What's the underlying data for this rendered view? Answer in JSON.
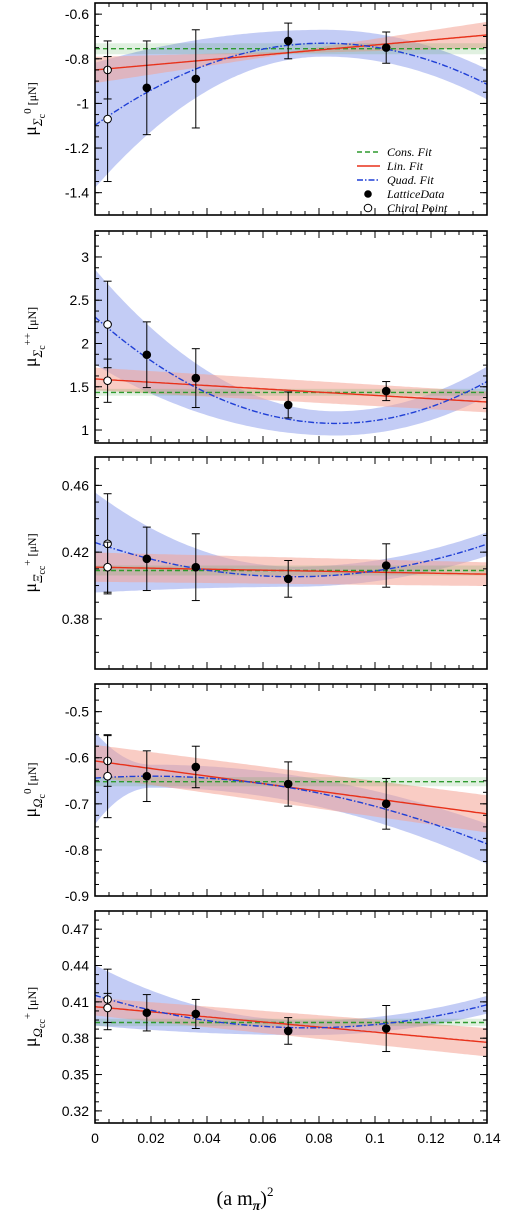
{
  "chart_data": [
    {
      "panel": "sigma_c0",
      "type": "line",
      "ylabel": {
        "main": "μ",
        "sub": "Σ",
        "sub2": "c",
        "sup": "0",
        "unit": "[μN]"
      },
      "ylim": [
        -1.5,
        -0.55
      ],
      "yticks": [
        -0.6,
        -0.8,
        -1,
        -1.2,
        -1.4
      ],
      "ytick_labels": [
        "-0.6",
        "-0.8",
        "-1",
        "-1.2",
        "-1.4"
      ],
      "lattice": [
        {
          "x": 0.0185,
          "y": -0.93,
          "err": 0.21
        },
        {
          "x": 0.036,
          "y": -0.89,
          "err": 0.22
        },
        {
          "x": 0.069,
          "y": -0.72,
          "err": 0.08
        },
        {
          "x": 0.104,
          "y": -0.75,
          "err": 0.07
        }
      ],
      "chiral": [
        {
          "x": 0.0045,
          "y": -0.85,
          "err": 0.13
        },
        {
          "x": 0.0045,
          "y": -1.07,
          "err": 0.28
        }
      ],
      "cons": {
        "value": -0.755,
        "band": 0.025
      },
      "lin": {
        "a": -0.85,
        "b": 1.12,
        "band_a": 0.1,
        "band_b": -0.1
      },
      "quad": {
        "a": -1.098,
        "b": 8.972,
        "c": -54.71,
        "band_a": 0.28,
        "band_vertex": 0.06,
        "band_c": 360,
        "vertex": 0.082
      }
    },
    {
      "panel": "sigma_cpp",
      "type": "line",
      "ylabel": {
        "main": "μ",
        "sub": "Σ",
        "sub2": "c",
        "sup": "++",
        "unit": "[μN]"
      },
      "ylim": [
        0.85,
        3.3
      ],
      "yticks": [
        1,
        1.5,
        2,
        2.5,
        3
      ],
      "ytick_labels": [
        "1",
        "1.5",
        "2",
        "2.5",
        "3"
      ],
      "lattice": [
        {
          "x": 0.0185,
          "y": 1.87,
          "err": 0.38
        },
        {
          "x": 0.036,
          "y": 1.6,
          "err": 0.34
        },
        {
          "x": 0.069,
          "y": 1.29,
          "err": 0.15
        },
        {
          "x": 0.104,
          "y": 1.45,
          "err": 0.11
        }
      ],
      "chiral": [
        {
          "x": 0.0045,
          "y": 2.22,
          "err": 0.5
        },
        {
          "x": 0.0045,
          "y": 1.57,
          "err": 0.25
        }
      ],
      "cons": {
        "value": 1.435,
        "band": 0.04
      },
      "lin": {
        "a": 1.59,
        "b": -1.9,
        "band_a": 0.22,
        "band_b": 0.2
      },
      "quad": {
        "a": 2.306,
        "b": -28.58,
        "c": 166.1,
        "band_a": 0.55,
        "band_vertex": 0.14,
        "band_c": 700,
        "vertex": 0.086
      }
    },
    {
      "panel": "xi_cc",
      "type": "line",
      "ylabel": {
        "main": "μ",
        "sub": "Ξ",
        "sub2": "cc",
        "sup": "+",
        "unit": "[μN]"
      },
      "ylim": [
        0.35,
        0.477
      ],
      "yticks": [
        0.38,
        0.42,
        0.46
      ],
      "ytick_labels": [
        "0.38",
        "0.42",
        "0.46"
      ],
      "lattice": [
        {
          "x": 0.0185,
          "y": 0.416,
          "err": 0.019
        },
        {
          "x": 0.036,
          "y": 0.411,
          "err": 0.02
        },
        {
          "x": 0.069,
          "y": 0.404,
          "err": 0.011
        },
        {
          "x": 0.104,
          "y": 0.412,
          "err": 0.013
        }
      ],
      "chiral": [
        {
          "x": 0.0045,
          "y": 0.425,
          "err": 0.03
        },
        {
          "x": 0.0045,
          "y": 0.411,
          "err": 0.015
        }
      ],
      "cons": {
        "value": 0.409,
        "band": 0.003
      },
      "lin": {
        "a": 0.411,
        "b": -0.03,
        "band_a": 0.015,
        "band_b": 0.012
      },
      "quad": {
        "a": 0.4258,
        "b": -0.5788,
        "c": 4.0825,
        "band_a": 0.03,
        "band_vertex": 0.006,
        "band_c": 280,
        "vertex": 0.072
      }
    },
    {
      "panel": "omega_c0",
      "type": "line",
      "ylabel": {
        "main": "μ",
        "sub": "Ω",
        "sub2": "c",
        "sup": "0",
        "unit": "[μN]"
      },
      "ylim": [
        -0.9,
        -0.44
      ],
      "yticks": [
        -0.5,
        -0.6,
        -0.7,
        -0.8,
        -0.9
      ],
      "ytick_labels": [
        "-0.5",
        "-0.6",
        "-0.7",
        "-0.8",
        "-0.9"
      ],
      "lattice": [
        {
          "x": 0.0185,
          "y": -0.64,
          "err": 0.055
        },
        {
          "x": 0.036,
          "y": -0.62,
          "err": 0.045
        },
        {
          "x": 0.069,
          "y": -0.657,
          "err": 0.048
        },
        {
          "x": 0.104,
          "y": -0.7,
          "err": 0.055
        }
      ],
      "chiral": [
        {
          "x": 0.0045,
          "y": -0.607,
          "err": 0.055
        },
        {
          "x": 0.0045,
          "y": -0.64,
          "err": 0.09
        }
      ],
      "cons": {
        "value": -0.652,
        "band": 0.01
      },
      "lin": {
        "a": -0.607,
        "b": -0.82,
        "band_a": 0.06,
        "band_b": 0.07
      },
      "quad": {
        "a": -0.6441,
        "b": 0.4085,
        "c": -10.21,
        "band_a": 0.1,
        "band_vertex": 0.025,
        "band_c": 420,
        "vertex": 0.02
      }
    },
    {
      "panel": "omega_cc",
      "type": "line",
      "ylabel": {
        "main": "μ",
        "sub": "Ω",
        "sub2": "cc",
        "sup": "+",
        "unit": "[μN]"
      },
      "ylim": [
        0.31,
        0.485
      ],
      "yticks": [
        0.32,
        0.35,
        0.38,
        0.41,
        0.44,
        0.47
      ],
      "ytick_labels": [
        "0.32",
        "0.35",
        "0.38",
        "0.41",
        "0.44",
        "0.47"
      ],
      "lattice": [
        {
          "x": 0.0185,
          "y": 0.401,
          "err": 0.015
        },
        {
          "x": 0.036,
          "y": 0.4,
          "err": 0.012
        },
        {
          "x": 0.069,
          "y": 0.386,
          "err": 0.011
        },
        {
          "x": 0.104,
          "y": 0.388,
          "err": 0.019
        }
      ],
      "chiral": [
        {
          "x": 0.0045,
          "y": 0.412,
          "err": 0.025
        },
        {
          "x": 0.0045,
          "y": 0.405,
          "err": 0.012
        }
      ],
      "cons": {
        "value": 0.393,
        "band": 0.003
      },
      "lin": {
        "a": 0.406,
        "b": -0.21,
        "band_a": 0.012,
        "band_b": 0.02
      },
      "quad": {
        "a": 0.4154,
        "b": -0.7057,
        "c": 4.6425,
        "band_a": 0.025,
        "band_vertex": 0.006,
        "band_c": 280,
        "vertex": 0.076
      }
    }
  ],
  "x_axis": {
    "range": [
      0,
      0.14
    ],
    "ticks": [
      0,
      0.02,
      0.04,
      0.06,
      0.08,
      0.1,
      0.12,
      0.14
    ],
    "tick_labels": [
      "0",
      "0.02",
      "0.04",
      "0.06",
      "0.08",
      "0.1",
      "0.12",
      "0.14"
    ],
    "label_main": "(a m",
    "label_sub": "π",
    "label_close": ")",
    "label_sup": "2"
  },
  "legend": {
    "placement": "inside first panel, lower-right",
    "entries": [
      "Cons. Fit",
      "Lin. Fit",
      "Quad. Fit",
      "LatticeData",
      "Chiral Point"
    ]
  },
  "colors": {
    "cons_line": "#2e9a2e",
    "lin_line": "#e8311a",
    "lin_band": "#f4a394",
    "quad_line": "#1f3fd6",
    "quad_band": "#6f86e8",
    "points": "#000000"
  }
}
